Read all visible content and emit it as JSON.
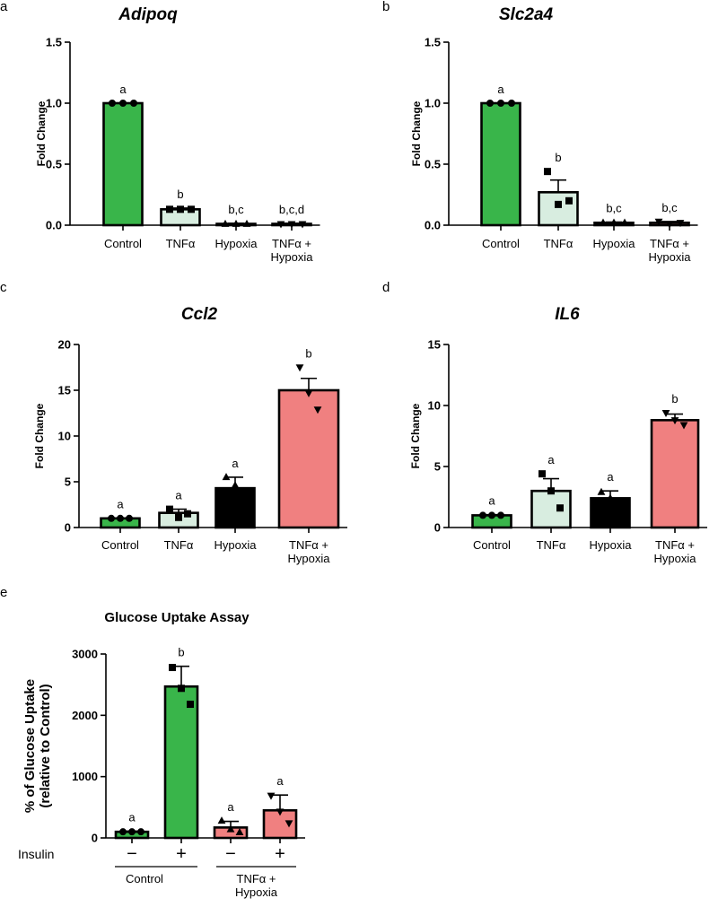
{
  "figure": {
    "colors": {
      "green": "#39b54a",
      "mint": "#d8ede0",
      "black": "#000000",
      "salmon": "#f08080"
    },
    "markers": [
      "circle",
      "square",
      "triangle",
      "triangle-down"
    ]
  },
  "chart_data": [
    {
      "type": "bar",
      "panel": "a",
      "title": "Adipoq",
      "ylabel": "Fold Change",
      "ylim": [
        0,
        1.5
      ],
      "yticks": [
        "0.0",
        "0.5",
        "1.0",
        "1.5"
      ],
      "categories": [
        [
          "Control"
        ],
        [
          "TNFα"
        ],
        [
          "Hypoxia"
        ],
        [
          "TNFα +",
          "Hypoxia"
        ]
      ],
      "values": [
        1.0,
        0.13,
        0.01,
        0.01
      ],
      "errors": [
        0.0,
        0.01,
        0.005,
        0.005
      ],
      "points": [
        [
          1.0,
          1.0,
          1.0
        ],
        [
          0.13,
          0.13,
          0.13
        ],
        [
          0.01,
          0.01,
          0.01
        ],
        [
          0.01,
          0.01,
          0.01
        ]
      ],
      "significance": [
        "a",
        "b",
        "b,c",
        "b,c,d"
      ],
      "fills": [
        "#39b54a",
        "#d8ede0",
        "#000000",
        "#f08080"
      ]
    },
    {
      "type": "bar",
      "panel": "b",
      "title": "Slc2a4",
      "ylabel": "Fold Change",
      "ylim": [
        0,
        1.5
      ],
      "yticks": [
        "0.0",
        "0.5",
        "1.0",
        "1.5"
      ],
      "categories": [
        [
          "Control"
        ],
        [
          "TNFα"
        ],
        [
          "Hypoxia"
        ],
        [
          "TNFα +",
          "Hypoxia"
        ]
      ],
      "values": [
        1.0,
        0.27,
        0.02,
        0.02
      ],
      "errors": [
        0.0,
        0.1,
        0.005,
        0.01
      ],
      "points": [
        [
          1.0,
          1.0,
          1.0
        ],
        [
          0.44,
          0.17,
          0.2
        ],
        [
          0.02,
          0.02,
          0.02
        ],
        [
          0.03,
          0.01,
          0.02
        ]
      ],
      "significance": [
        "a",
        "b",
        "b,c",
        "b,c"
      ],
      "fills": [
        "#39b54a",
        "#d8ede0",
        "#000000",
        "#f08080"
      ]
    },
    {
      "type": "bar",
      "panel": "c",
      "title": "Ccl2",
      "ylabel": "Fold Change",
      "ylim": [
        0,
        20
      ],
      "yticks": [
        "0",
        "5",
        "10",
        "15",
        "20"
      ],
      "categories": [
        [
          "Control"
        ],
        [
          "TNFα"
        ],
        [
          "Hypoxia"
        ],
        [
          "TNFα +",
          "Hypoxia"
        ]
      ],
      "values": [
        1.0,
        1.6,
        4.3,
        15.0
      ],
      "errors": [
        0.05,
        0.4,
        1.2,
        1.3
      ],
      "points": [
        [
          1.0,
          1.0,
          1.0
        ],
        [
          2.0,
          1.1,
          1.5
        ],
        [
          5.5,
          4.6,
          2.9
        ],
        [
          17.5,
          14.7,
          12.9
        ]
      ],
      "significance": [
        "a",
        "a",
        "a",
        "b"
      ],
      "fills": [
        "#39b54a",
        "#d8ede0",
        "#000000",
        "#f08080"
      ]
    },
    {
      "type": "bar",
      "panel": "d",
      "title": "IL6",
      "ylabel": "Fold Change",
      "ylim": [
        0,
        15
      ],
      "yticks": [
        "0",
        "5",
        "10",
        "15"
      ],
      "categories": [
        [
          "Control"
        ],
        [
          "TNFα"
        ],
        [
          "Hypoxia"
        ],
        [
          "TNFα +",
          "Hypoxia"
        ]
      ],
      "values": [
        1.0,
        3.0,
        2.4,
        8.8
      ],
      "errors": [
        0.05,
        1.0,
        0.6,
        0.5
      ],
      "points": [
        [
          1.0,
          1.0,
          1.0
        ],
        [
          4.4,
          3.0,
          1.6
        ],
        [
          2.9,
          2.4,
          1.9
        ],
        [
          9.4,
          8.8,
          8.4
        ]
      ],
      "significance": [
        "a",
        "a",
        "a",
        "b"
      ],
      "fills": [
        "#39b54a",
        "#d8ede0",
        "#000000",
        "#f08080"
      ]
    },
    {
      "type": "bar",
      "panel": "e",
      "title": "Glucose Uptake Assay",
      "ylabel": [
        "% of Glucose Uptake",
        "(relative to Control)"
      ],
      "ylim": [
        0,
        3000
      ],
      "yticks": [
        "0",
        "1000",
        "2000",
        "3000"
      ],
      "row_label": "Insulin",
      "insulin": [
        "−",
        "+",
        "−",
        "+"
      ],
      "groups": [
        {
          "label": [
            "Control"
          ]
        },
        {
          "label": [
            "TNFα +",
            "Hypoxia"
          ]
        }
      ],
      "values": [
        100,
        2470,
        170,
        450
      ],
      "errors": [
        10,
        330,
        100,
        250
      ],
      "points": [
        [
          100,
          100,
          100
        ],
        [
          2780,
          2440,
          2180
        ],
        [
          280,
          140,
          90
        ],
        [
          690,
          430,
          240
        ]
      ],
      "significance": [
        "a",
        "b",
        "a",
        "a"
      ],
      "fills": [
        "#39b54a",
        "#39b54a",
        "#f08080",
        "#f08080"
      ]
    }
  ]
}
